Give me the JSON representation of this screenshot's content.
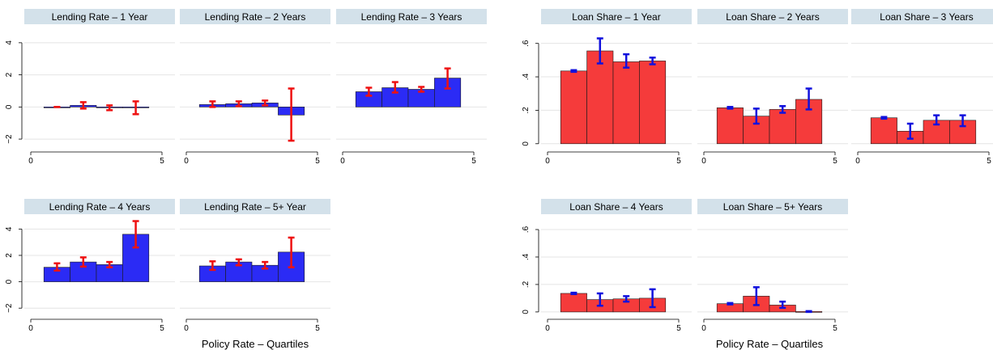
{
  "colors": {
    "lending_bar": "#2b2bf5",
    "lending_err": "#ee1111",
    "loan_bar": "#f53b3b",
    "loan_err": "#1111dd",
    "header": "#d3e1ea",
    "grid": "#e4e4e4"
  },
  "chart_data": [
    {
      "group": "lending",
      "type": "bar",
      "xlabel": "Policy Rate – Quartiles",
      "xlim": [
        0,
        5
      ],
      "xticks": [
        0,
        5
      ],
      "ylim": [
        -2.6,
        5
      ],
      "yticks": [
        -2,
        0,
        2,
        4
      ],
      "grid": true,
      "panels": [
        {
          "title": "Lending Rate – 1 Year",
          "x": [
            1,
            2,
            3,
            4
          ],
          "values": [
            0.0,
            0.1,
            -0.05,
            -0.05
          ],
          "err_low": [
            0.0,
            -0.1,
            -0.2,
            -0.45
          ],
          "err_high": [
            0.0,
            0.3,
            0.1,
            0.35
          ]
        },
        {
          "title": "Lending Rate – 2 Years",
          "x": [
            1,
            2,
            3,
            4
          ],
          "values": [
            0.15,
            0.2,
            0.25,
            -0.5
          ],
          "err_low": [
            0.0,
            0.05,
            0.1,
            -2.1
          ],
          "err_high": [
            0.35,
            0.35,
            0.4,
            1.15
          ]
        },
        {
          "title": "Lending Rate – 3 Years",
          "x": [
            1,
            2,
            3,
            4
          ],
          "values": [
            0.95,
            1.2,
            1.1,
            1.8
          ],
          "err_low": [
            0.7,
            0.9,
            0.95,
            1.15
          ],
          "err_high": [
            1.2,
            1.55,
            1.25,
            2.4
          ]
        },
        {
          "title": "Lending Rate – 4 Years",
          "x": [
            1,
            2,
            3,
            4
          ],
          "values": [
            1.1,
            1.5,
            1.3,
            3.6
          ],
          "err_low": [
            0.85,
            1.15,
            1.1,
            2.6
          ],
          "err_high": [
            1.4,
            1.85,
            1.5,
            4.6
          ]
        },
        {
          "title": "Lending Rate – 5+ Year",
          "x": [
            1,
            2,
            3,
            4
          ],
          "values": [
            1.2,
            1.5,
            1.25,
            2.25
          ],
          "err_low": [
            0.9,
            1.25,
            1.0,
            1.1
          ],
          "err_high": [
            1.55,
            1.7,
            1.5,
            3.35
          ]
        }
      ]
    },
    {
      "group": "loan",
      "type": "bar",
      "xlabel": "Policy Rate – Quartiles",
      "xlim": [
        0,
        5
      ],
      "xticks": [
        0,
        5
      ],
      "ylim": [
        -0.03,
        0.7
      ],
      "yticks": [
        0,
        0.2,
        0.4,
        0.6
      ],
      "ytick_labels": [
        "0",
        ".2",
        ".4",
        ".6"
      ],
      "grid": true,
      "panels": [
        {
          "title": "Loan Share – 1 Year",
          "x": [
            1,
            2,
            3,
            4
          ],
          "values": [
            0.435,
            0.555,
            0.49,
            0.495
          ],
          "err_low": [
            0.43,
            0.48,
            0.455,
            0.475
          ],
          "err_high": [
            0.44,
            0.63,
            0.535,
            0.515
          ]
        },
        {
          "title": "Loan Share – 2 Years",
          "x": [
            1,
            2,
            3,
            4
          ],
          "values": [
            0.215,
            0.165,
            0.205,
            0.265
          ],
          "err_low": [
            0.21,
            0.12,
            0.185,
            0.205
          ],
          "err_high": [
            0.22,
            0.21,
            0.225,
            0.33
          ]
        },
        {
          "title": "Loan Share – 3 Years",
          "x": [
            1,
            2,
            3,
            4
          ],
          "values": [
            0.155,
            0.075,
            0.14,
            0.14
          ],
          "err_low": [
            0.15,
            0.03,
            0.115,
            0.105
          ],
          "err_high": [
            0.16,
            0.12,
            0.17,
            0.17
          ]
        },
        {
          "title": "Loan Share – 4 Years",
          "x": [
            1,
            2,
            3,
            4
          ],
          "values": [
            0.135,
            0.09,
            0.095,
            0.1
          ],
          "err_low": [
            0.13,
            0.045,
            0.075,
            0.035
          ],
          "err_high": [
            0.14,
            0.135,
            0.115,
            0.165
          ]
        },
        {
          "title": "Loan Share – 5+ Years",
          "x": [
            1,
            2,
            3,
            4
          ],
          "values": [
            0.06,
            0.115,
            0.05,
            0.003
          ],
          "err_low": [
            0.055,
            0.05,
            0.03,
            0.0
          ],
          "err_high": [
            0.065,
            0.18,
            0.075,
            0.006
          ]
        }
      ]
    }
  ]
}
